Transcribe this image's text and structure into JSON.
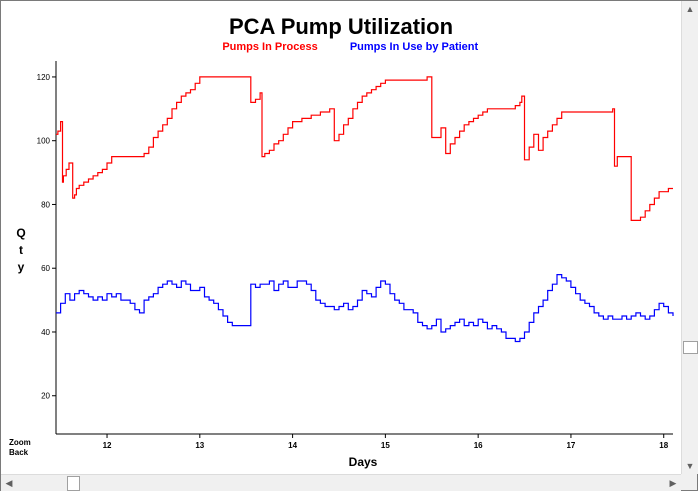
{
  "chart_data": {
    "type": "line",
    "title": "PCA Pump Utilization",
    "xlabel": "Days",
    "ylabel": "Qty",
    "xlim": [
      11.45,
      18.1
    ],
    "ylim": [
      8,
      125
    ],
    "x_ticks": [
      12,
      13,
      14,
      15,
      16,
      17,
      18
    ],
    "y_ticks": [
      20,
      40,
      60,
      80,
      100,
      120
    ],
    "grid": false,
    "legend_position": "top-center",
    "series": [
      {
        "name": "Pumps In Process",
        "color": "#ff0000",
        "x": [
          11.45,
          11.47,
          11.5,
          11.52,
          11.53,
          11.56,
          11.59,
          11.63,
          11.65,
          11.67,
          11.7,
          11.75,
          11.8,
          11.85,
          11.9,
          11.95,
          12.0,
          12.05,
          12.1,
          12.2,
          12.3,
          12.4,
          12.45,
          12.5,
          12.55,
          12.6,
          12.65,
          12.7,
          12.75,
          12.8,
          12.85,
          12.9,
          12.95,
          13.0,
          13.5,
          13.55,
          13.6,
          13.65,
          13.67,
          13.7,
          13.75,
          13.8,
          13.85,
          13.9,
          13.95,
          14.0,
          14.05,
          14.1,
          14.2,
          14.3,
          14.4,
          14.45,
          14.5,
          14.55,
          14.6,
          14.65,
          14.7,
          14.75,
          14.8,
          14.85,
          14.9,
          14.95,
          15.0,
          15.05,
          15.1,
          15.2,
          15.3,
          15.45,
          15.5,
          15.55,
          15.6,
          15.65,
          15.7,
          15.75,
          15.8,
          15.85,
          15.9,
          15.95,
          16.0,
          16.05,
          16.1,
          16.2,
          16.3,
          16.4,
          16.45,
          16.47,
          16.5,
          16.55,
          16.6,
          16.65,
          16.7,
          16.75,
          16.8,
          16.85,
          16.9,
          17.0,
          17.2,
          17.4,
          17.45,
          17.47,
          17.5,
          17.55,
          17.6,
          17.65,
          17.7,
          17.75,
          17.8,
          17.85,
          17.9,
          17.95,
          18.0,
          18.05,
          18.1
        ],
        "values": [
          102,
          103,
          106,
          87,
          89,
          91,
          93,
          82,
          83,
          85,
          86,
          87,
          88,
          89,
          90,
          91,
          93,
          95,
          95,
          95,
          95,
          96,
          98,
          101,
          103,
          105,
          107,
          110,
          112,
          114,
          115,
          116,
          118,
          120,
          120,
          112,
          113,
          115,
          95,
          96,
          97,
          99,
          100,
          102,
          104,
          106,
          106,
          107,
          108,
          109,
          110,
          100,
          102,
          105,
          107,
          110,
          112,
          114,
          115,
          116,
          117,
          118,
          119,
          119,
          119,
          119,
          119,
          120,
          101,
          101,
          104,
          96,
          99,
          101,
          103,
          105,
          106,
          107,
          108,
          109,
          110,
          110,
          110,
          111,
          112,
          114,
          94,
          98,
          102,
          97,
          101,
          103,
          105,
          107,
          109,
          109,
          109,
          109,
          110,
          92,
          95,
          95,
          95,
          75,
          75,
          76,
          78,
          80,
          82,
          84,
          84,
          85,
          85
        ]
      },
      {
        "name": "Pumps In Use by Patient",
        "color": "#0000ff",
        "x": [
          11.45,
          11.5,
          11.55,
          11.6,
          11.65,
          11.7,
          11.75,
          11.8,
          11.85,
          11.9,
          11.95,
          12.0,
          12.05,
          12.1,
          12.15,
          12.2,
          12.25,
          12.3,
          12.35,
          12.4,
          12.45,
          12.5,
          12.55,
          12.6,
          12.65,
          12.7,
          12.75,
          12.8,
          12.85,
          12.9,
          12.95,
          13.0,
          13.05,
          13.1,
          13.15,
          13.2,
          13.25,
          13.3,
          13.35,
          13.4,
          13.45,
          13.5,
          13.55,
          13.6,
          13.65,
          13.7,
          13.75,
          13.8,
          13.85,
          13.9,
          13.95,
          14.0,
          14.05,
          14.1,
          14.15,
          14.2,
          14.25,
          14.3,
          14.35,
          14.4,
          14.45,
          14.5,
          14.55,
          14.6,
          14.65,
          14.7,
          14.75,
          14.8,
          14.85,
          14.9,
          14.95,
          15.0,
          15.05,
          15.1,
          15.15,
          15.2,
          15.25,
          15.3,
          15.35,
          15.4,
          15.45,
          15.5,
          15.55,
          15.6,
          15.65,
          15.7,
          15.75,
          15.8,
          15.85,
          15.9,
          15.95,
          16.0,
          16.05,
          16.1,
          16.15,
          16.2,
          16.25,
          16.3,
          16.35,
          16.4,
          16.45,
          16.5,
          16.55,
          16.6,
          16.65,
          16.7,
          16.75,
          16.8,
          16.85,
          16.9,
          16.95,
          17.0,
          17.05,
          17.1,
          17.15,
          17.2,
          17.25,
          17.3,
          17.35,
          17.4,
          17.45,
          17.5,
          17.55,
          17.6,
          17.65,
          17.7,
          17.75,
          17.8,
          17.85,
          17.9,
          17.95,
          18.0,
          18.05,
          18.1
        ],
        "values": [
          46,
          49,
          52,
          50,
          52,
          53,
          52,
          51,
          50,
          51,
          50,
          52,
          51,
          52,
          50,
          50,
          49,
          47,
          46,
          50,
          51,
          52,
          54,
          55,
          56,
          55,
          54,
          56,
          55,
          53,
          53,
          54,
          51,
          50,
          49,
          47,
          45,
          43,
          42,
          42,
          42,
          42,
          55,
          54,
          55,
          55,
          56,
          53,
          55,
          56,
          54,
          54,
          56,
          56,
          55,
          53,
          50,
          49,
          48,
          48,
          47,
          48,
          49,
          47,
          48,
          50,
          53,
          52,
          51,
          54,
          56,
          55,
          52,
          50,
          49,
          47,
          47,
          46,
          43,
          42,
          41,
          42,
          44,
          40,
          41,
          42,
          43,
          44,
          42,
          43,
          42,
          44,
          43,
          41,
          42,
          41,
          40,
          38,
          38,
          37,
          38,
          40,
          43,
          46,
          48,
          50,
          53,
          55,
          58,
          57,
          56,
          54,
          52,
          50,
          49,
          48,
          46,
          45,
          44,
          45,
          44,
          44,
          45,
          44,
          45,
          46,
          45,
          44,
          45,
          47,
          49,
          48,
          46,
          45
        ]
      }
    ]
  },
  "controls": {
    "zoom_back_line1": "Zoom",
    "zoom_back_line2": "Back"
  }
}
